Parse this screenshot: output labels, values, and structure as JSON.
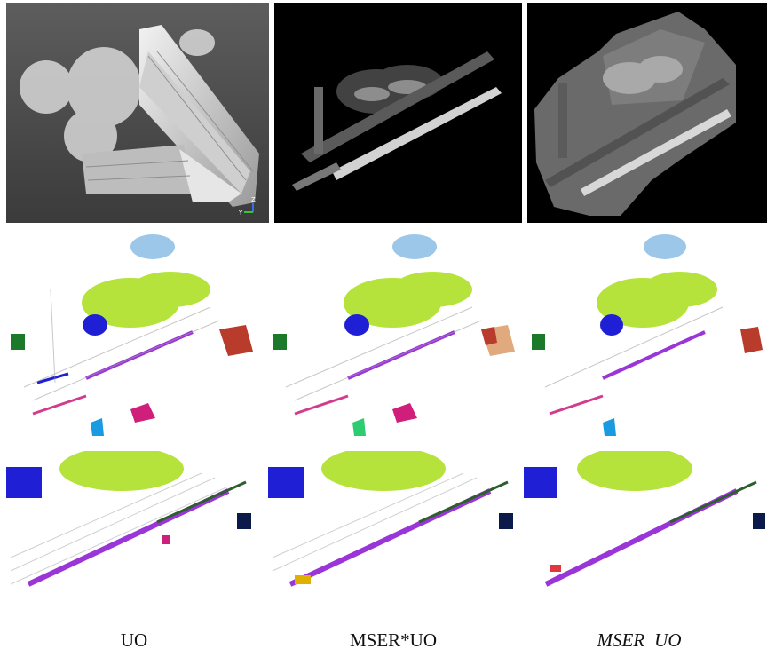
{
  "figure": {
    "captions": {
      "uo": "UO",
      "mser_star_uo": "MSER*UO",
      "mser_minus_uo": "MSER⁻UO"
    },
    "panels": {
      "point_cloud": {
        "axis_labels": {
          "z": "Z",
          "y": "Y"
        }
      }
    },
    "colors": {
      "background": "#ffffff",
      "render_bg_top": "#5c5c5c",
      "render_bg_bottom": "#3a3a3a",
      "height_bg": "#000000",
      "lime": "#b5e33b",
      "purple": "#9a35d8",
      "blue": "#1f1fd6",
      "red": "#b83b2b",
      "light_blue": "#9cc7e8",
      "green": "#1a7a2a",
      "magenta": "#d01f7a"
    }
  }
}
